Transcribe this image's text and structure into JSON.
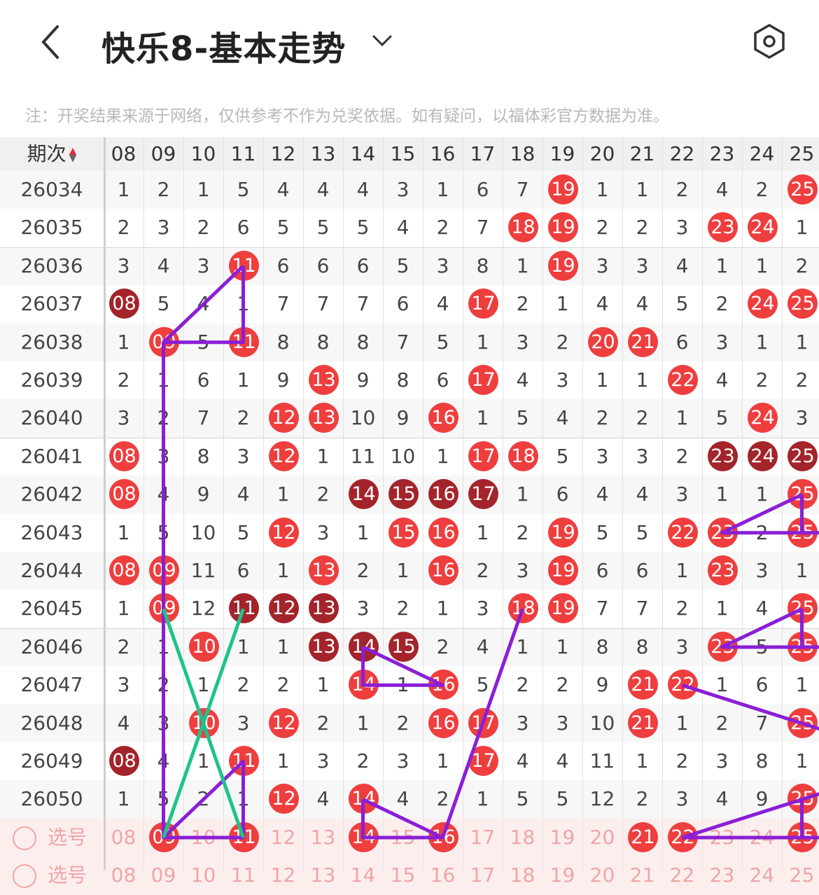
{
  "header": {
    "title": "快乐8-基本走势",
    "back_icon": "back-arrow-icon",
    "dropdown_icon": "chevron-down-icon",
    "settings_icon": "settings-hexagon-icon"
  },
  "note": "注：开奖结果来源于网络，仅供参考不作为兑奖依据。如有疑问，以福体彩官方数据为准。",
  "table": {
    "period_header": "期次",
    "columns": [
      "08",
      "09",
      "10",
      "11",
      "12",
      "13",
      "14",
      "15",
      "16",
      "17",
      "18",
      "19",
      "20",
      "21",
      "22",
      "23",
      "24",
      "25"
    ],
    "rows": [
      {
        "period": "26034",
        "cells": [
          "1",
          "2",
          "1",
          "5",
          "4",
          "4",
          "4",
          "3",
          "1",
          "6",
          "7",
          "19",
          "1",
          "1",
          "2",
          "4",
          "2",
          "25"
        ],
        "hits": [
          11,
          17
        ]
      },
      {
        "period": "26035",
        "cells": [
          "2",
          "3",
          "2",
          "6",
          "5",
          "5",
          "5",
          "4",
          "2",
          "7",
          "18",
          "19",
          "2",
          "2",
          "3",
          "23",
          "24",
          "1"
        ],
        "hits": [
          10,
          11,
          15,
          16
        ]
      },
      {
        "period": "26036",
        "cells": [
          "3",
          "4",
          "3",
          "11",
          "6",
          "6",
          "6",
          "5",
          "3",
          "8",
          "1",
          "19",
          "3",
          "3",
          "4",
          "1",
          "1",
          "2"
        ],
        "hits": [
          3,
          11
        ]
      },
      {
        "period": "26037",
        "cells": [
          "08",
          "5",
          "4",
          "1",
          "7",
          "7",
          "7",
          "6",
          "4",
          "17",
          "2",
          "1",
          "4",
          "4",
          "5",
          "2",
          "24",
          "25"
        ],
        "hits": [
          0,
          9,
          16,
          17
        ],
        "dark": [
          0
        ]
      },
      {
        "period": "26038",
        "cells": [
          "1",
          "09",
          "5",
          "11",
          "8",
          "8",
          "8",
          "7",
          "5",
          "1",
          "3",
          "2",
          "20",
          "21",
          "6",
          "3",
          "1",
          "1"
        ],
        "hits": [
          1,
          3,
          12,
          13
        ]
      },
      {
        "period": "26039",
        "cells": [
          "2",
          "1",
          "6",
          "1",
          "9",
          "13",
          "9",
          "8",
          "6",
          "17",
          "4",
          "3",
          "1",
          "1",
          "22",
          "4",
          "2",
          "2"
        ],
        "hits": [
          5,
          9,
          14
        ]
      },
      {
        "period": "26040",
        "cells": [
          "3",
          "2",
          "7",
          "2",
          "12",
          "13",
          "10",
          "9",
          "16",
          "1",
          "5",
          "4",
          "2",
          "2",
          "1",
          "5",
          "24",
          "3"
        ],
        "hits": [
          4,
          5,
          8,
          16
        ]
      },
      {
        "period": "26041",
        "cells": [
          "08",
          "3",
          "8",
          "3",
          "12",
          "1",
          "11",
          "10",
          "1",
          "17",
          "18",
          "5",
          "3",
          "3",
          "2",
          "23",
          "24",
          "25"
        ],
        "hits": [
          0,
          4,
          9,
          10,
          15,
          16,
          17
        ],
        "dark": [
          15,
          16,
          17
        ]
      },
      {
        "period": "26042",
        "cells": [
          "08",
          "4",
          "9",
          "4",
          "1",
          "2",
          "14",
          "15",
          "16",
          "17",
          "1",
          "6",
          "4",
          "4",
          "3",
          "1",
          "1",
          "25"
        ],
        "hits": [
          0,
          6,
          7,
          8,
          9,
          17
        ],
        "dark": [
          6,
          7,
          8,
          9
        ]
      },
      {
        "period": "26043",
        "cells": [
          "1",
          "5",
          "10",
          "5",
          "12",
          "3",
          "1",
          "15",
          "16",
          "1",
          "2",
          "19",
          "5",
          "5",
          "22",
          "23",
          "2",
          "25"
        ],
        "hits": [
          4,
          7,
          8,
          11,
          14,
          15,
          17
        ]
      },
      {
        "period": "26044",
        "cells": [
          "08",
          "09",
          "11",
          "6",
          "1",
          "13",
          "2",
          "1",
          "16",
          "2",
          "3",
          "19",
          "6",
          "6",
          "1",
          "23",
          "3",
          "1"
        ],
        "hits": [
          0,
          1,
          5,
          8,
          11,
          15
        ]
      },
      {
        "period": "26045",
        "cells": [
          "1",
          "09",
          "12",
          "11",
          "12",
          "13",
          "3",
          "2",
          "1",
          "3",
          "18",
          "19",
          "7",
          "7",
          "2",
          "1",
          "4",
          "25"
        ],
        "hits": [
          1,
          3,
          4,
          5,
          10,
          11,
          17
        ],
        "dark": [
          3,
          4,
          5
        ]
      },
      {
        "period": "26046",
        "cells": [
          "2",
          "1",
          "10",
          "1",
          "1",
          "13",
          "14",
          "15",
          "2",
          "4",
          "1",
          "1",
          "8",
          "8",
          "3",
          "23",
          "5",
          "25"
        ],
        "hits": [
          2,
          5,
          6,
          7,
          15,
          17
        ],
        "dark": [
          5,
          6,
          7
        ]
      },
      {
        "period": "26047",
        "cells": [
          "3",
          "2",
          "1",
          "2",
          "2",
          "1",
          "14",
          "1",
          "16",
          "5",
          "2",
          "2",
          "9",
          "21",
          "22",
          "1",
          "6",
          "1"
        ],
        "hits": [
          6,
          8,
          13,
          14
        ]
      },
      {
        "period": "26048",
        "cells": [
          "4",
          "3",
          "10",
          "3",
          "12",
          "2",
          "1",
          "2",
          "16",
          "17",
          "3",
          "3",
          "10",
          "21",
          "1",
          "2",
          "7",
          "25"
        ],
        "hits": [
          2,
          4,
          8,
          9,
          13,
          17
        ]
      },
      {
        "period": "26049",
        "cells": [
          "08",
          "4",
          "1",
          "11",
          "1",
          "3",
          "2",
          "3",
          "1",
          "17",
          "4",
          "4",
          "11",
          "1",
          "2",
          "3",
          "8",
          "1"
        ],
        "hits": [
          0,
          3,
          9
        ],
        "dark": [
          0
        ]
      },
      {
        "period": "26050",
        "cells": [
          "1",
          "5",
          "2",
          "1",
          "12",
          "4",
          "14",
          "4",
          "2",
          "1",
          "5",
          "5",
          "12",
          "2",
          "3",
          "4",
          "9",
          "25"
        ],
        "hits": [
          4,
          6,
          17
        ]
      }
    ],
    "pick_row": {
      "label": "选号",
      "cells": [
        "08",
        "09",
        "10",
        "11",
        "12",
        "13",
        "14",
        "15",
        "16",
        "17",
        "18",
        "19",
        "20",
        "21",
        "22",
        "23",
        "24",
        "25"
      ],
      "hits": [
        1,
        3,
        6,
        8,
        13,
        14,
        17
      ]
    },
    "pick_row_2": {
      "label": "选号",
      "cells": [
        "08",
        "09",
        "10",
        "11",
        "12",
        "13",
        "14",
        "15",
        "16",
        "17",
        "18",
        "19",
        "20",
        "21",
        "22",
        "23",
        "24",
        "25"
      ]
    }
  },
  "colors": {
    "red": "#ef3e3e",
    "dark": "#a3242a",
    "purple": "#8a1fd6",
    "green": "#1ec38a"
  }
}
